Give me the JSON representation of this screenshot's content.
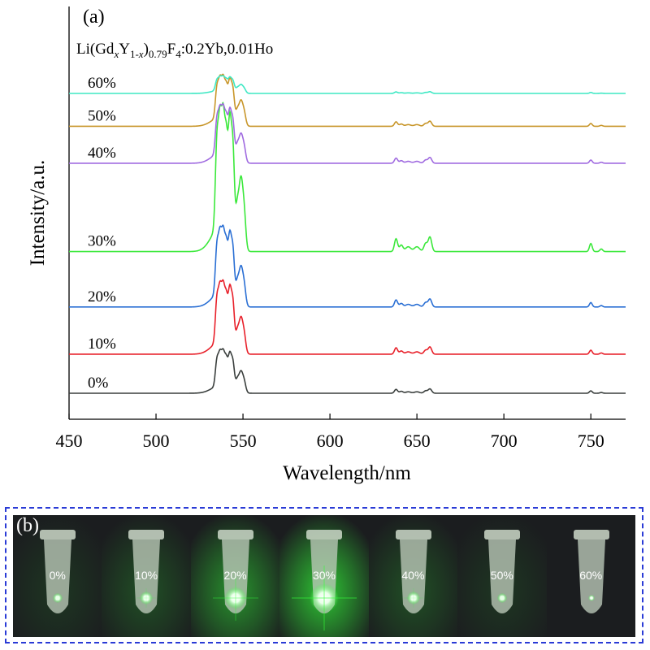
{
  "chart_data": {
    "type": "line",
    "panel_label": "(a)",
    "xlabel": "Wavelength/nm",
    "ylabel": "Intensity/a.u.",
    "xlim": [
      450,
      770
    ],
    "xticks": [
      450,
      500,
      550,
      600,
      650,
      700,
      750
    ],
    "yticks": [],
    "grid": false,
    "legend": "none",
    "annotation": {
      "parts": [
        {
          "text": "Li(Gd",
          "style": "normal"
        },
        {
          "text": "x",
          "style": "sub-italic"
        },
        {
          "text": "Y",
          "style": "normal"
        },
        {
          "text": "1-",
          "style": "sub"
        },
        {
          "text": "x",
          "style": "sub-italic"
        },
        {
          "text": ")",
          "style": "normal"
        },
        {
          "text": "0.79",
          "style": "sub"
        },
        {
          "text": "F",
          "style": "normal"
        },
        {
          "text": "4",
          "style": "sub"
        },
        {
          "text": ":0.2Yb,0.01Ho",
          "style": "normal"
        }
      ]
    },
    "series": [
      {
        "name": "0%",
        "color": "#3a3f3d",
        "baseline": 0.0,
        "scale": 0.3
      },
      {
        "name": "10%",
        "color": "#e8202a",
        "baseline": 0.95,
        "scale": 0.5
      },
      {
        "name": "20%",
        "color": "#2a6fd4",
        "baseline": 2.1,
        "scale": 0.55
      },
      {
        "name": "30%",
        "color": "#3be83b",
        "baseline": 3.45,
        "scale": 1.0
      },
      {
        "name": "40%",
        "color": "#a06be0",
        "baseline": 5.6,
        "scale": 0.4
      },
      {
        "name": "50%",
        "color": "#c8962a",
        "baseline": 6.5,
        "scale": 0.35
      },
      {
        "name": "60%",
        "color": "#3fe8c4",
        "baseline": 7.3,
        "scale": 0.12
      }
    ],
    "peaks": [
      {
        "x": 535.0,
        "h": 2.6,
        "w": 0.9
      },
      {
        "x": 536.8,
        "h": 3.0,
        "w": 0.9
      },
      {
        "x": 538.6,
        "h": 3.1,
        "w": 0.9
      },
      {
        "x": 540.4,
        "h": 2.7,
        "w": 0.9
      },
      {
        "x": 542.4,
        "h": 3.3,
        "w": 0.9
      },
      {
        "x": 544.2,
        "h": 2.8,
        "w": 0.9
      },
      {
        "x": 546.8,
        "h": 1.3,
        "w": 1.0
      },
      {
        "x": 548.8,
        "h": 1.9,
        "w": 1.0
      },
      {
        "x": 550.6,
        "h": 1.2,
        "w": 1.0
      },
      {
        "x": 537.0,
        "h": 0.8,
        "w": 5.0
      },
      {
        "x": 638.0,
        "h": 0.4,
        "w": 0.9
      },
      {
        "x": 641.0,
        "h": 0.2,
        "w": 1.0
      },
      {
        "x": 645.0,
        "h": 0.15,
        "w": 1.5
      },
      {
        "x": 650.0,
        "h": 0.15,
        "w": 1.5
      },
      {
        "x": 655.0,
        "h": 0.25,
        "w": 1.0
      },
      {
        "x": 657.5,
        "h": 0.45,
        "w": 1.0
      },
      {
        "x": 750.0,
        "h": 0.25,
        "w": 0.8
      },
      {
        "x": 756.0,
        "h": 0.08,
        "w": 0.8
      }
    ]
  },
  "panel_b": {
    "label": "(b)",
    "tubes": [
      {
        "label": "0%",
        "glow": 0.15
      },
      {
        "label": "10%",
        "glow": 0.3
      },
      {
        "label": "20%",
        "glow": 0.7
      },
      {
        "label": "30%",
        "glow": 1.0
      },
      {
        "label": "40%",
        "glow": 0.3
      },
      {
        "label": "50%",
        "glow": 0.15
      },
      {
        "label": "60%",
        "glow": 0.0
      }
    ],
    "colors": {
      "glow": "#34ff3a",
      "background": "#1b1d1f",
      "border": "#2a3bd6"
    }
  }
}
